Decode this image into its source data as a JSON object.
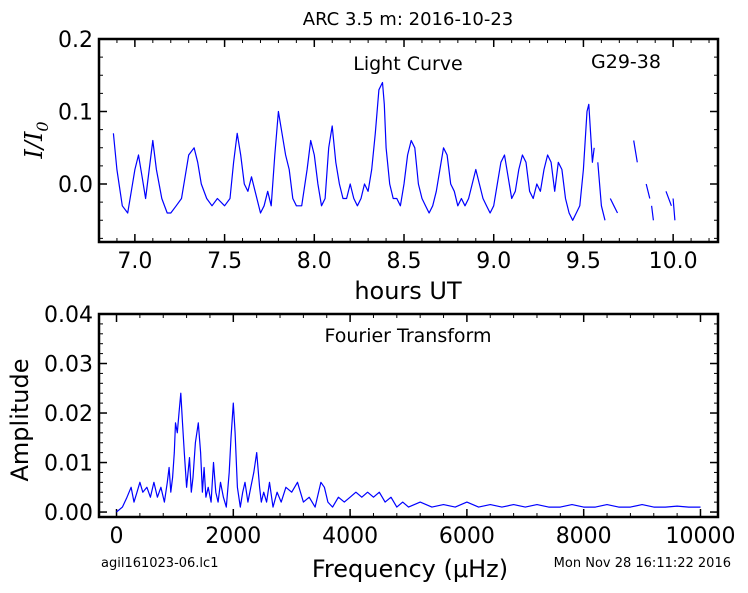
{
  "figure": {
    "title": "ARC 3.5 m:  2016-10-23",
    "footer_left": "agil161023-06.lc1",
    "footer_right": "Mon Nov 28 16:11:22 2016",
    "line_color": "#0000ff"
  },
  "chart_data": [
    {
      "type": "line",
      "panel": "light-curve",
      "annotation_center": "Light Curve",
      "annotation_right": "G29-38",
      "xlabel": "hours UT",
      "ylabel": "I/I0",
      "xlim": [
        6.8,
        10.25
      ],
      "ylim": [
        -0.08,
        0.2
      ],
      "x_ticks": [
        7.0,
        7.5,
        8.0,
        8.5,
        9.0,
        9.5,
        10.0
      ],
      "x_tick_labels": [
        "7.0",
        "7.5",
        "8.0",
        "8.5",
        "9.0",
        "9.5",
        "10.0"
      ],
      "y_ticks": [
        0.0,
        0.1,
        0.2
      ],
      "y_tick_labels": [
        "0.0",
        "0.1",
        "0.2"
      ],
      "grid": false,
      "series": [
        {
          "x": [
            6.88,
            6.9,
            6.93,
            6.96,
            6.98,
            7.0,
            7.02,
            7.04,
            7.06,
            7.08,
            7.1,
            7.12,
            7.15,
            7.18,
            7.2,
            7.23,
            7.26,
            7.28,
            7.3,
            7.33,
            7.35,
            7.37,
            7.4,
            7.43,
            7.46,
            7.5,
            7.53,
            7.55,
            7.57,
            7.59,
            7.61,
            7.63,
            7.65,
            7.67,
            7.7,
            7.72,
            7.74,
            7.76,
            7.78,
            7.8,
            7.82,
            7.84,
            7.86,
            7.88,
            7.9,
            7.93,
            7.96,
            7.98,
            8.0,
            8.02,
            8.04,
            8.06,
            8.08,
            8.1,
            8.12,
            8.14,
            8.16,
            8.18,
            8.2,
            8.22,
            8.24,
            8.26,
            8.28,
            8.3,
            8.32,
            8.34,
            8.36,
            8.38,
            8.39,
            8.4,
            8.42,
            8.44,
            8.46,
            8.48,
            8.5,
            8.52,
            8.54,
            8.56,
            8.58,
            8.6,
            8.62,
            8.64,
            8.66,
            8.68,
            8.7,
            8.72,
            8.74,
            8.76,
            8.78,
            8.8,
            8.82,
            8.84,
            8.86,
            8.88,
            8.9,
            8.92,
            8.94,
            8.96,
            8.98,
            9.0,
            9.02,
            9.04,
            9.06,
            9.08,
            9.1,
            9.12,
            9.14,
            9.16,
            9.18,
            9.2,
            9.22,
            9.24,
            9.26,
            9.28,
            9.3,
            9.32,
            9.34,
            9.36,
            9.38,
            9.4,
            9.42,
            9.44,
            9.46,
            9.48,
            9.5,
            9.52,
            9.53,
            9.54,
            9.55,
            9.56,
            null,
            9.58,
            9.6,
            9.62,
            null,
            9.65,
            9.67,
            9.69,
            null,
            9.75,
            null,
            9.78,
            9.8,
            null,
            9.85,
            9.87,
            null,
            9.88,
            9.89,
            null,
            9.96,
            9.99,
            null,
            10.0,
            10.01
          ],
          "y": [
            0.07,
            0.02,
            -0.03,
            -0.04,
            -0.01,
            0.02,
            0.04,
            0.01,
            -0.02,
            0.02,
            0.06,
            0.02,
            -0.02,
            -0.04,
            -0.04,
            -0.03,
            -0.02,
            0.01,
            0.04,
            0.05,
            0.03,
            0.0,
            -0.02,
            -0.03,
            -0.02,
            -0.03,
            -0.02,
            0.03,
            0.07,
            0.04,
            0.0,
            -0.01,
            0.01,
            -0.01,
            -0.04,
            -0.03,
            -0.01,
            -0.03,
            0.04,
            0.1,
            0.07,
            0.04,
            0.02,
            -0.02,
            -0.03,
            -0.03,
            0.02,
            0.06,
            0.04,
            0.0,
            -0.03,
            -0.02,
            0.05,
            0.08,
            0.03,
            0.0,
            -0.02,
            -0.02,
            0.0,
            -0.02,
            -0.03,
            -0.02,
            0.0,
            -0.01,
            0.02,
            0.07,
            0.13,
            0.14,
            0.11,
            0.05,
            0.0,
            -0.02,
            -0.02,
            -0.03,
            0.0,
            0.04,
            0.06,
            0.05,
            0.0,
            -0.02,
            -0.03,
            -0.04,
            -0.03,
            -0.01,
            0.02,
            0.05,
            0.04,
            0.0,
            -0.01,
            -0.03,
            -0.02,
            -0.03,
            -0.02,
            0.0,
            0.02,
            0.0,
            -0.02,
            -0.03,
            -0.04,
            -0.03,
            0.0,
            0.03,
            0.04,
            0.01,
            -0.02,
            -0.01,
            0.02,
            0.04,
            0.03,
            -0.01,
            -0.02,
            0.0,
            -0.01,
            0.02,
            0.04,
            0.03,
            -0.01,
            0.03,
            0.02,
            -0.02,
            -0.04,
            -0.05,
            -0.04,
            -0.03,
            0.02,
            0.1,
            0.11,
            0.07,
            0.03,
            0.05,
            null,
            0.03,
            -0.03,
            -0.05,
            null,
            -0.02,
            -0.03,
            -0.04,
            null,
            0.0,
            null,
            0.06,
            0.03,
            null,
            0.0,
            -0.02,
            null,
            -0.03,
            -0.05,
            null,
            -0.01,
            -0.03,
            null,
            -0.02,
            -0.05
          ]
        }
      ]
    },
    {
      "type": "line",
      "panel": "fourier-transform",
      "annotation_center": "Fourier Transform",
      "xlabel": "Frequency (μHz)",
      "ylabel": "Amplitude",
      "xlim": [
        -300,
        10300
      ],
      "ylim": [
        -0.001,
        0.04
      ],
      "x_ticks": [
        0,
        2000,
        4000,
        6000,
        8000,
        10000
      ],
      "x_tick_labels": [
        "0",
        "2000",
        "4000",
        "6000",
        "8000",
        "10000"
      ],
      "y_ticks": [
        0.0,
        0.01,
        0.02,
        0.03,
        0.04
      ],
      "y_tick_labels": [
        "0.00",
        "0.01",
        "0.02",
        "0.03",
        "0.04"
      ],
      "grid": false,
      "series": [
        {
          "x": [
            0,
            100,
            180,
            250,
            300,
            350,
            400,
            450,
            520,
            580,
            640,
            700,
            760,
            820,
            870,
            900,
            930,
            960,
            990,
            1010,
            1040,
            1070,
            1100,
            1130,
            1160,
            1200,
            1250,
            1280,
            1310,
            1350,
            1400,
            1440,
            1470,
            1500,
            1530,
            1570,
            1620,
            1660,
            1700,
            1740,
            1780,
            1830,
            1880,
            1930,
            1960,
            2000,
            2030,
            2070,
            2120,
            2160,
            2200,
            2250,
            2300,
            2350,
            2400,
            2450,
            2480,
            2520,
            2570,
            2620,
            2680,
            2750,
            2820,
            2900,
            3000,
            3100,
            3200,
            3300,
            3400,
            3500,
            3560,
            3620,
            3700,
            3800,
            3900,
            4000,
            4100,
            4200,
            4300,
            4400,
            4500,
            4600,
            4700,
            4800,
            4900,
            5000,
            5200,
            5400,
            5600,
            5800,
            6000,
            6200,
            6400,
            6600,
            6800,
            7000,
            7200,
            7400,
            7600,
            7800,
            8000,
            8200,
            8400,
            8600,
            8800,
            9000,
            9200,
            9400,
            9600,
            9800,
            10000
          ],
          "y": [
            0.0,
            0.001,
            0.003,
            0.005,
            0.002,
            0.004,
            0.006,
            0.004,
            0.005,
            0.003,
            0.006,
            0.003,
            0.005,
            0.002,
            0.006,
            0.009,
            0.004,
            0.007,
            0.012,
            0.018,
            0.016,
            0.02,
            0.024,
            0.018,
            0.012,
            0.005,
            0.011,
            0.004,
            0.007,
            0.014,
            0.018,
            0.012,
            0.004,
            0.009,
            0.003,
            0.005,
            0.002,
            0.01,
            0.004,
            0.002,
            0.006,
            0.003,
            0.001,
            0.008,
            0.015,
            0.022,
            0.016,
            0.005,
            0.001,
            0.004,
            0.006,
            0.002,
            0.005,
            0.008,
            0.012,
            0.005,
            0.002,
            0.004,
            0.002,
            0.006,
            0.001,
            0.004,
            0.002,
            0.005,
            0.004,
            0.006,
            0.002,
            0.003,
            0.001,
            0.006,
            0.005,
            0.002,
            0.001,
            0.003,
            0.002,
            0.003,
            0.004,
            0.003,
            0.004,
            0.003,
            0.004,
            0.002,
            0.003,
            0.001,
            0.002,
            0.001,
            0.002,
            0.001,
            0.0015,
            0.001,
            0.002,
            0.001,
            0.0015,
            0.001,
            0.0015,
            0.001,
            0.0015,
            0.001,
            0.001,
            0.0015,
            0.001,
            0.001,
            0.0015,
            0.001,
            0.001,
            0.0015,
            0.001,
            0.001,
            0.0012,
            0.001,
            0.001
          ]
        }
      ]
    }
  ]
}
